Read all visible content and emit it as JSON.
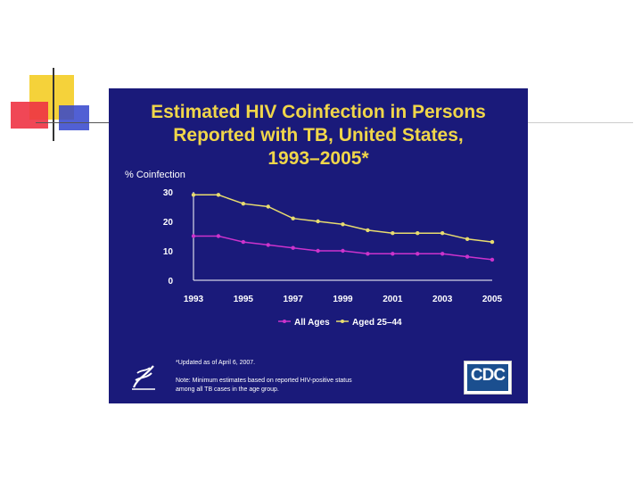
{
  "slide": {
    "title_lines": [
      "Estimated HIV Coinfection in Persons",
      "Reported with TB, United States,",
      "1993–2005*"
    ],
    "footnote": "*Updated as of  April 6, 2007.",
    "note_line1": "Note: Minimum estimates based on reported HIV-positive status",
    "note_line2": "among all TB cases in the age group.",
    "logo_text": "CDC"
  },
  "colors": {
    "slide_background": "#1a1a7a",
    "title": "#f0d64a",
    "series_all_ages": "#cc33cc",
    "series_aged_25_44": "#e8dc6e"
  },
  "chart_data": {
    "type": "line",
    "title": "Estimated HIV Coinfection in Persons Reported with TB, United States, 1993–2005*",
    "ylabel": "% Coinfection",
    "xlabel": "",
    "x": [
      1993,
      1994,
      1995,
      1996,
      1997,
      1998,
      1999,
      2000,
      2001,
      2002,
      2003,
      2004,
      2005
    ],
    "x_tick_labels": [
      "1993",
      "1995",
      "1997",
      "1999",
      "2001",
      "2003",
      "2005"
    ],
    "y_tick_labels": [
      "0",
      "10",
      "20",
      "30"
    ],
    "ylim": [
      0,
      30
    ],
    "grid": false,
    "legend_position": "bottom",
    "series": [
      {
        "name": "All Ages",
        "color": "#cc33cc",
        "values": [
          15,
          15,
          13,
          12,
          11,
          10,
          10,
          9,
          9,
          9,
          9,
          8,
          7
        ]
      },
      {
        "name": "Aged 25–44",
        "color": "#e8dc6e",
        "values": [
          29,
          29,
          26,
          25,
          21,
          20,
          19,
          17,
          16,
          16,
          16,
          14,
          13
        ]
      }
    ]
  }
}
